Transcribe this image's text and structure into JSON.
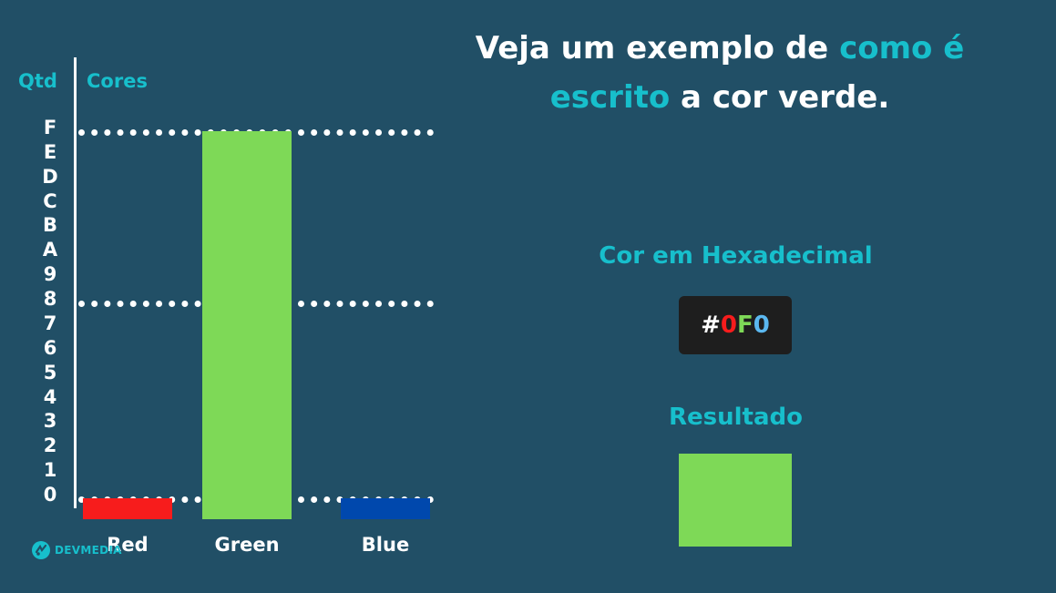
{
  "diagram": {
    "y_axis_label": "Qtd",
    "x_axis_label": "Cores",
    "y_ticks": [
      "F",
      "E",
      "D",
      "C",
      "B",
      "A",
      "9",
      "8",
      "7",
      "6",
      "5",
      "4",
      "3",
      "2",
      "1",
      "0"
    ],
    "bars": [
      {
        "label": "Red",
        "value": 0,
        "color": "#f71c1c"
      },
      {
        "label": "Green",
        "value": 15,
        "color": "#7ed957"
      },
      {
        "label": "Blue",
        "value": 0,
        "color": "#0048ad"
      }
    ],
    "guide_levels": [
      "F",
      "8",
      "0"
    ]
  },
  "title": {
    "part1": "Veja um exemplo de ",
    "highlight": "como é escrito",
    "part2": " a cor verde."
  },
  "hex": {
    "heading": "Cor em Hexadecimal",
    "hash": "#",
    "r": "0",
    "g": "F",
    "b": "0",
    "colors": {
      "hash": "#ffffff",
      "r": "#f71c1c",
      "g": "#7ed957",
      "b": "#5bb8f0"
    }
  },
  "result": {
    "heading": "Resultado",
    "swatch_color": "#7ed957"
  },
  "logo": {
    "text": "DEVMEDIA",
    "icon": "devmedia-logo-icon"
  }
}
